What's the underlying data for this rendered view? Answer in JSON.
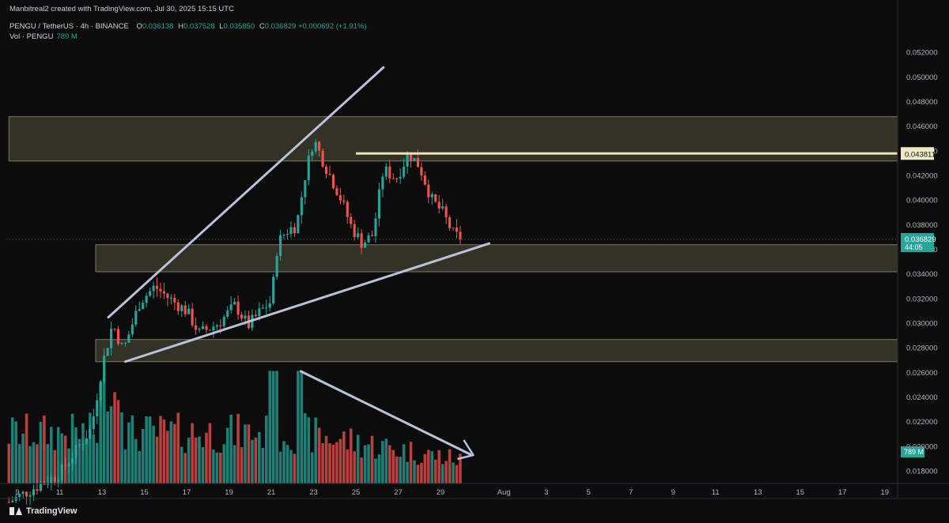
{
  "header": {
    "credit": "Manbitreal2 created with TradingView.com, Jul 30, 2025 15:15 UTC",
    "symbol": "PENGU / TetherUS · 4h · BINANCE",
    "ohlc": [
      {
        "key": "O",
        "value": "0.036138"
      },
      {
        "key": "H",
        "value": "0.037528"
      },
      {
        "key": "L",
        "value": "0.035850"
      },
      {
        "key": "C",
        "value": "0.036829"
      }
    ],
    "change": "+0.000692 (+1.91%)",
    "volume_label": "Vol · PENGU",
    "volume_value": "789 M"
  },
  "footer": {
    "logo_text": "TradingView"
  },
  "colors": {
    "background": "#0c0c0c",
    "up": "#26a69a",
    "down": "#ef5350",
    "zone_fill": "#3b3a2c",
    "zone_border": "#7b7966",
    "trendline": "#b8c2d9",
    "level_line": "#e8e3b0"
  },
  "chart_data": {
    "type": "candlestick",
    "symbol": "PENGU / TetherUS",
    "timeframe": "4h",
    "ylim": [
      0.017,
      0.0532
    ],
    "y_ticks": [
      "0.018000",
      "0.020000",
      "0.022000",
      "0.024000",
      "0.026000",
      "0.028000",
      "0.030000",
      "0.032000",
      "0.034000",
      "0.036000",
      "0.038000",
      "0.040000",
      "0.042000",
      "0.044000",
      "0.046000",
      "0.048000",
      "0.050000",
      "0.052000"
    ],
    "x_ticks": [
      {
        "label": "9",
        "day": 9
      },
      {
        "label": "11",
        "day": 11
      },
      {
        "label": "13",
        "day": 13
      },
      {
        "label": "15",
        "day": 15
      },
      {
        "label": "17",
        "day": 17
      },
      {
        "label": "19",
        "day": 19
      },
      {
        "label": "21",
        "day": 21
      },
      {
        "label": "23",
        "day": 23
      },
      {
        "label": "25",
        "day": 25
      },
      {
        "label": "27",
        "day": 27
      },
      {
        "label": "29",
        "day": 29
      },
      {
        "label": "Aug",
        "day": 32
      },
      {
        "label": "3",
        "day": 34
      },
      {
        "label": "5",
        "day": 36
      },
      {
        "label": "7",
        "day": 38
      },
      {
        "label": "9",
        "day": 40
      },
      {
        "label": "11",
        "day": 42
      },
      {
        "label": "13",
        "day": 44
      },
      {
        "label": "15",
        "day": 46
      },
      {
        "label": "17",
        "day": 48
      },
      {
        "label": "19",
        "day": 50
      }
    ],
    "price_anchors": [
      {
        "day": 8.6,
        "price": 0.0155
      },
      {
        "day": 11,
        "price": 0.0178
      },
      {
        "day": 12.5,
        "price": 0.0215
      },
      {
        "day": 13.0,
        "price": 0.0265
      },
      {
        "day": 13.5,
        "price": 0.03
      },
      {
        "day": 14.0,
        "price": 0.0278
      },
      {
        "day": 14.8,
        "price": 0.0318
      },
      {
        "day": 15.5,
        "price": 0.033
      },
      {
        "day": 16.2,
        "price": 0.032
      },
      {
        "day": 17.0,
        "price": 0.031
      },
      {
        "day": 17.6,
        "price": 0.0292
      },
      {
        "day": 18.5,
        "price": 0.03
      },
      {
        "day": 19.3,
        "price": 0.0315
      },
      {
        "day": 19.9,
        "price": 0.0298
      },
      {
        "day": 20.5,
        "price": 0.031
      },
      {
        "day": 21.0,
        "price": 0.0318
      },
      {
        "day": 21.3,
        "price": 0.0365
      },
      {
        "day": 21.7,
        "price": 0.0375
      },
      {
        "day": 22.2,
        "price": 0.038
      },
      {
        "day": 22.6,
        "price": 0.042
      },
      {
        "day": 23.0,
        "price": 0.045
      },
      {
        "day": 23.5,
        "price": 0.043
      },
      {
        "day": 24.2,
        "price": 0.0405
      },
      {
        "day": 24.8,
        "price": 0.0378
      },
      {
        "day": 25.3,
        "price": 0.0365
      },
      {
        "day": 25.8,
        "price": 0.0372
      },
      {
        "day": 26.3,
        "price": 0.0425
      },
      {
        "day": 26.9,
        "price": 0.0418
      },
      {
        "day": 27.5,
        "price": 0.0438
      },
      {
        "day": 28.0,
        "price": 0.0428
      },
      {
        "day": 28.6,
        "price": 0.04
      },
      {
        "day": 29.1,
        "price": 0.039
      },
      {
        "day": 29.6,
        "price": 0.0373
      },
      {
        "day": 30.0,
        "price": 0.0368
      }
    ],
    "volume_max_millions": 2400,
    "zones": [
      {
        "name": "upper-resistance-zone",
        "day_from": 8.6,
        "day_to": 51,
        "price_low": 0.0432,
        "price_high": 0.0468
      },
      {
        "name": "middle-support-zone",
        "day_from": 12.7,
        "day_to": 51,
        "price_low": 0.0342,
        "price_high": 0.0364
      },
      {
        "name": "lower-support-zone",
        "day_from": 12.7,
        "day_to": 51,
        "price_low": 0.0269,
        "price_high": 0.0287
      }
    ],
    "trendlines": [
      {
        "name": "upper-wedge-line",
        "from": {
          "day": 13.3,
          "price": 0.0305
        },
        "to": {
          "day": 26.3,
          "price": 0.0508
        }
      },
      {
        "name": "lower-wedge-line",
        "from": {
          "day": 14.1,
          "price": 0.0269
        },
        "to": {
          "day": 31.3,
          "price": 0.0365
        }
      }
    ],
    "horizontal_level": {
      "day_from": 25.0,
      "day_to": 51,
      "price": 0.043811,
      "label": "0.043811"
    },
    "current_price": {
      "price": 0.036829,
      "label": "0.036829",
      "countdown": "44:05"
    },
    "current_volume_label": "789 M",
    "volume_arrow": {
      "from_day": 22.4,
      "to_day": 30.4
    }
  }
}
